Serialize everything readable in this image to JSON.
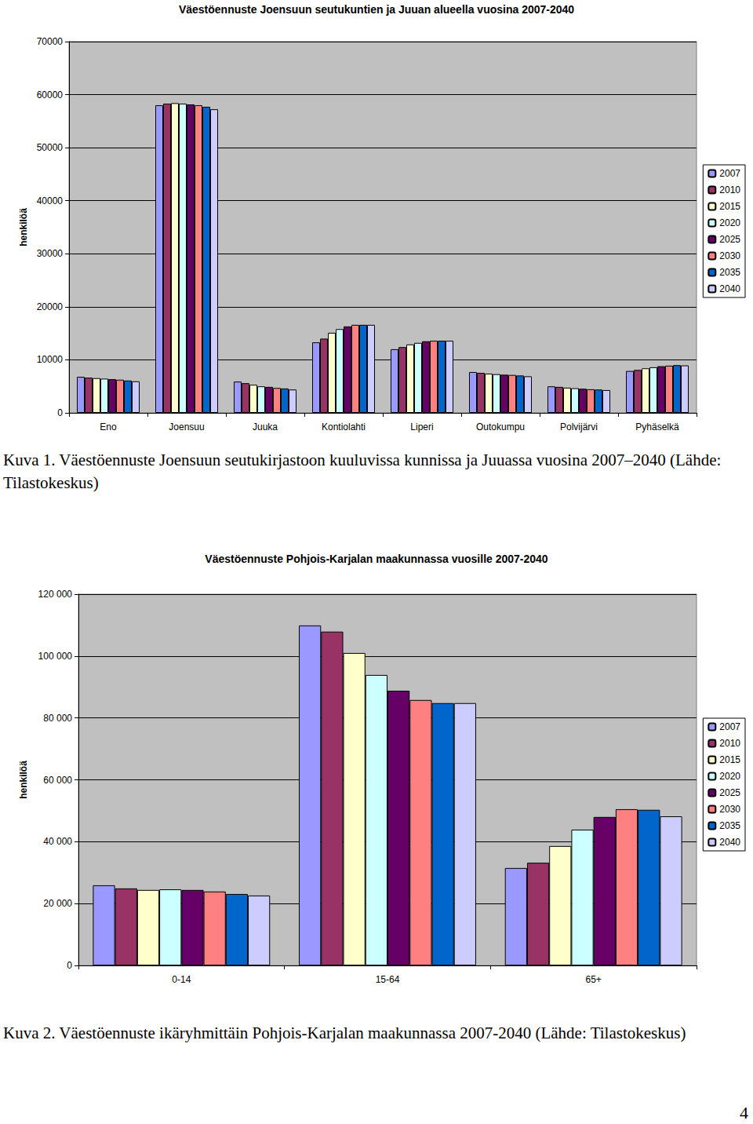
{
  "chart_data": [
    {
      "type": "bar",
      "title": "Väestöennuste Joensuun seutukuntien ja Juuan alueella vuosina 2007-2040",
      "y_label": "henkilöä",
      "categories": [
        "Eno",
        "Joensuu",
        "Juuka",
        "Kontiolahti",
        "Liperi",
        "Outokumpu",
        "Polvijärvi",
        "Pyhäselkä"
      ],
      "series": [
        {
          "name": "2007",
          "color": "#9999FF",
          "values": [
            6800,
            58000,
            5900,
            13300,
            12000,
            7700,
            5000,
            7900
          ]
        },
        {
          "name": "2010",
          "color": "#993366",
          "values": [
            6650,
            58300,
            5600,
            14000,
            12400,
            7550,
            4900,
            8100
          ]
        },
        {
          "name": "2015",
          "color": "#FFFFCC",
          "values": [
            6550,
            58400,
            5300,
            15100,
            12900,
            7400,
            4750,
            8400
          ]
        },
        {
          "name": "2020",
          "color": "#CCFFFF",
          "values": [
            6450,
            58300,
            5000,
            15800,
            13200,
            7300,
            4650,
            8600
          ]
        },
        {
          "name": "2025",
          "color": "#660066",
          "values": [
            6350,
            58150,
            4900,
            16300,
            13500,
            7200,
            4550,
            8800
          ]
        },
        {
          "name": "2030",
          "color": "#FF8080",
          "values": [
            6250,
            58000,
            4700,
            16600,
            13600,
            7150,
            4450,
            8900
          ]
        },
        {
          "name": "2035",
          "color": "#0066CC",
          "values": [
            6100,
            57700,
            4600,
            16600,
            13600,
            7050,
            4400,
            9000
          ]
        },
        {
          "name": "2040",
          "color": "#CCCCFF",
          "values": [
            5950,
            57250,
            4400,
            16600,
            13600,
            6900,
            4300,
            8950
          ]
        }
      ],
      "ylim": [
        0,
        70000
      ],
      "yticks": [
        0,
        10000,
        20000,
        30000,
        40000,
        50000,
        60000,
        70000
      ],
      "grid": true,
      "legend": "right"
    },
    {
      "type": "bar",
      "title": "Väestöennuste Pohjois-Karjalan maakunnassa vuosille 2007-2040",
      "y_label": "henkilöä",
      "categories": [
        "0-14",
        "15-64",
        "65+"
      ],
      "series": [
        {
          "name": "2007",
          "color": "#9999FF",
          "values": [
            25900,
            109900,
            31500
          ]
        },
        {
          "name": "2010",
          "color": "#993366",
          "values": [
            24900,
            107900,
            33200
          ]
        },
        {
          "name": "2015",
          "color": "#FFFFCC",
          "values": [
            24400,
            101000,
            38600
          ]
        },
        {
          "name": "2020",
          "color": "#CCFFFF",
          "values": [
            24600,
            93900,
            43900
          ]
        },
        {
          "name": "2025",
          "color": "#660066",
          "values": [
            24400,
            88800,
            48000
          ]
        },
        {
          "name": "2030",
          "color": "#FF8080",
          "values": [
            23900,
            85800,
            50500
          ]
        },
        {
          "name": "2035",
          "color": "#0066CC",
          "values": [
            23100,
            84800,
            50300
          ]
        },
        {
          "name": "2040",
          "color": "#CCCCFF",
          "values": [
            22600,
            84800,
            48200
          ]
        }
      ],
      "ylim": [
        0,
        120000
      ],
      "yticks": [
        0,
        {
          "value": 20000,
          "label": "20 000"
        },
        {
          "value": 40000,
          "label": "40 000"
        },
        {
          "value": 60000,
          "label": "60 000"
        },
        {
          "value": 80000,
          "label": "80 000"
        },
        {
          "value": 100000,
          "label": "100 000"
        },
        {
          "value": 120000,
          "label": "120 000"
        }
      ],
      "grid": true,
      "legend": "right"
    }
  ],
  "document": {
    "captions": [
      "Kuva 1. Väestöennuste Joensuun seutukirjastoon kuuluvissa kunnissa ja Juuassa vuosina 2007–2040 (Lähde: Tilastokeskus)",
      "Kuva 2. Väestöennuste ikäryhmittäin Pohjois-Karjalan maakunnassa 2007-2040 (Lähde: Tilastokeskus)"
    ],
    "page_number": "4"
  }
}
